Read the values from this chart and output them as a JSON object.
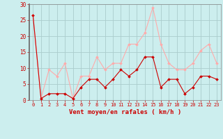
{
  "x": [
    0,
    1,
    2,
    3,
    4,
    5,
    6,
    7,
    8,
    9,
    10,
    11,
    12,
    13,
    14,
    15,
    16,
    17,
    18,
    19,
    20,
    21,
    22,
    23
  ],
  "rafales": [
    26.5,
    0.5,
    9.5,
    7.5,
    11.5,
    0.5,
    7.5,
    7.5,
    13.5,
    9.5,
    11.5,
    11.5,
    17.5,
    17.5,
    21.0,
    29.0,
    17.5,
    11.5,
    9.5,
    9.5,
    11.5,
    15.5,
    17.5,
    11.5
  ],
  "moyen": [
    26.5,
    0.5,
    2.0,
    2.0,
    2.0,
    0.5,
    4.0,
    6.5,
    6.5,
    4.0,
    6.5,
    9.5,
    7.5,
    9.5,
    13.5,
    13.5,
    4.0,
    6.5,
    6.5,
    2.0,
    4.0,
    7.5,
    7.5,
    6.5
  ],
  "rafales_color": "#ffaaaa",
  "moyen_color": "#cc0000",
  "background_color": "#cceeee",
  "grid_color": "#aacccc",
  "xlabel": "Vent moyen/en rafales ( km/h )",
  "xlabel_color": "#cc0000",
  "tick_color": "#cc0000",
  "ylim": [
    0,
    30
  ],
  "yticks": [
    0,
    5,
    10,
    15,
    20,
    25,
    30
  ],
  "xlim": [
    -0.5,
    23.5
  ],
  "xtick_fontsize": 5,
  "ytick_fontsize": 5.5,
  "xlabel_fontsize": 6.5
}
